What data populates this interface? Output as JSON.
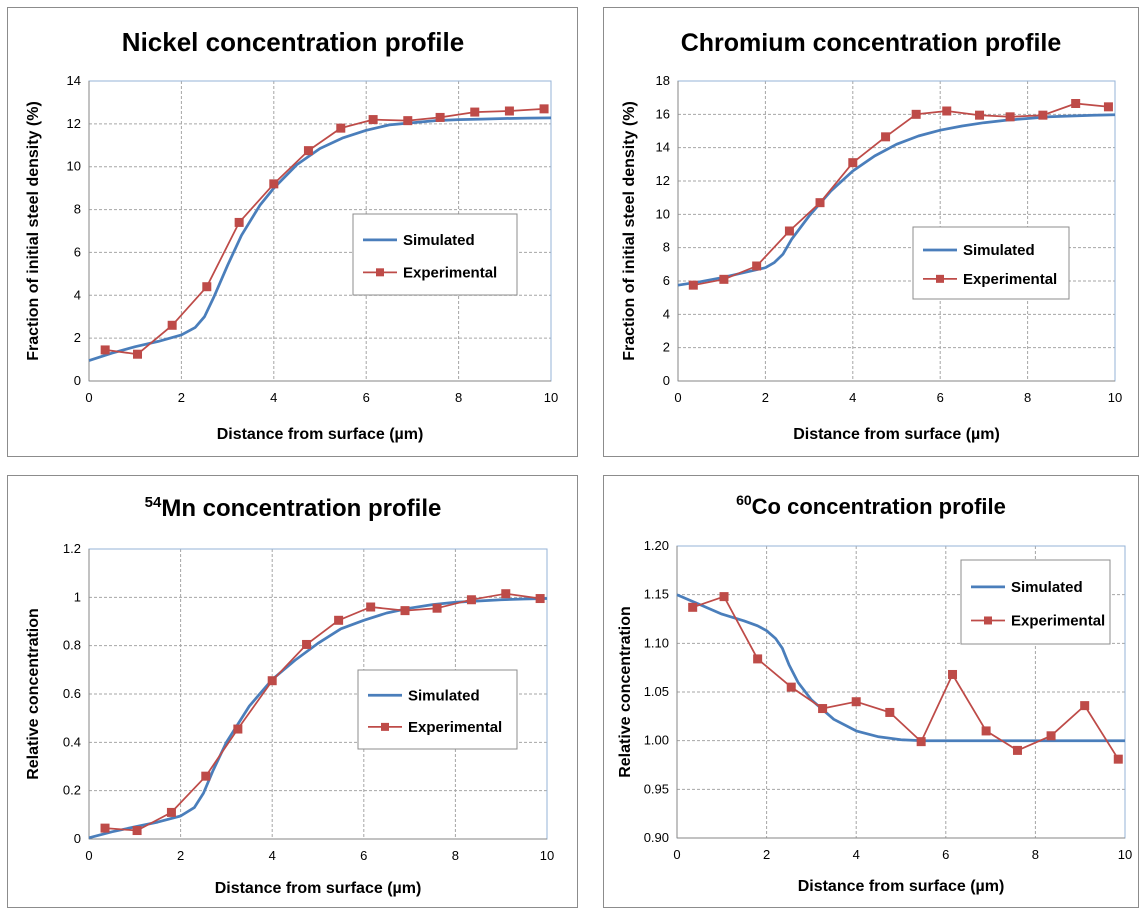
{
  "chart_data": [
    {
      "type": "line",
      "title": "Nickel concentration profile",
      "title_superscript": "",
      "xlabel": "Distance from surface (µm)",
      "ylabel": "Fraction of initial steel density (%)",
      "xlim": [
        0,
        10
      ],
      "ylim": [
        0,
        14
      ],
      "xticks": [
        "0",
        "2",
        "4",
        "6",
        "8",
        "10"
      ],
      "yticks": [
        "0",
        "2",
        "4",
        "6",
        "8",
        "10",
        "12",
        "14"
      ],
      "grid": true,
      "legend_position": "right-middle",
      "series": [
        {
          "name": "Simulated",
          "color": "#4a7ebb",
          "marker": "none",
          "x": [
            0,
            0.5,
            1,
            1.5,
            2,
            2.3,
            2.5,
            2.7,
            3,
            3.3,
            3.7,
            4,
            4.5,
            5,
            5.5,
            6,
            6.5,
            7,
            7.5,
            8,
            8.5,
            9,
            9.5,
            10
          ],
          "y": [
            0.95,
            1.3,
            1.6,
            1.85,
            2.15,
            2.5,
            3.0,
            3.9,
            5.4,
            6.8,
            8.2,
            9.0,
            10.1,
            10.85,
            11.35,
            11.7,
            11.95,
            12.05,
            12.15,
            12.2,
            12.22,
            12.25,
            12.27,
            12.28
          ]
        },
        {
          "name": "Experimental",
          "color": "#be4b48",
          "marker": "square",
          "x": [
            0.35,
            1.05,
            1.8,
            2.55,
            3.25,
            4.0,
            4.75,
            5.45,
            6.15,
            6.9,
            7.6,
            8.35,
            9.1,
            9.85
          ],
          "y": [
            1.45,
            1.25,
            2.6,
            4.4,
            7.4,
            9.2,
            10.75,
            11.8,
            12.2,
            12.15,
            12.3,
            12.55,
            12.6,
            12.7
          ]
        }
      ]
    },
    {
      "type": "line",
      "title": "Chromium concentration profile",
      "title_superscript": "",
      "xlabel": "Distance from surface (µm)",
      "ylabel": "Fraction of initial steel density (%)",
      "xlim": [
        0,
        10
      ],
      "ylim": [
        0,
        18
      ],
      "xticks": [
        "0",
        "2",
        "4",
        "6",
        "8",
        "10"
      ],
      "yticks": [
        "0",
        "2",
        "4",
        "6",
        "8",
        "10",
        "12",
        "14",
        "16",
        "18"
      ],
      "grid": true,
      "legend_position": "right-middle",
      "series": [
        {
          "name": "Simulated",
          "color": "#4a7ebb",
          "marker": "none",
          "x": [
            0,
            0.5,
            1,
            1.5,
            2,
            2.2,
            2.4,
            2.6,
            3,
            3.5,
            4,
            4.5,
            5,
            5.5,
            6,
            6.5,
            7,
            7.5,
            8,
            8.5,
            9,
            9.5,
            10
          ],
          "y": [
            5.75,
            5.95,
            6.2,
            6.5,
            6.8,
            7.1,
            7.6,
            8.5,
            9.9,
            11.4,
            12.6,
            13.5,
            14.2,
            14.7,
            15.05,
            15.3,
            15.5,
            15.65,
            15.75,
            15.85,
            15.9,
            15.95,
            15.98
          ]
        },
        {
          "name": "Experimental",
          "color": "#be4b48",
          "marker": "square",
          "x": [
            0.35,
            1.05,
            1.8,
            2.55,
            3.25,
            4.0,
            4.75,
            5.45,
            6.15,
            6.9,
            7.6,
            8.35,
            9.1,
            9.85
          ],
          "y": [
            5.75,
            6.1,
            6.9,
            9.0,
            10.7,
            13.1,
            14.65,
            16.0,
            16.2,
            15.95,
            15.85,
            15.95,
            16.65,
            16.45
          ]
        }
      ]
    },
    {
      "type": "line",
      "title": "Mn concentration profile",
      "title_superscript": "54",
      "xlabel": "Distance from surface (µm)",
      "ylabel": "Relative concentration",
      "xlim": [
        0,
        10
      ],
      "ylim": [
        0,
        1.2
      ],
      "xticks": [
        "0",
        "2",
        "4",
        "6",
        "8",
        "10"
      ],
      "yticks": [
        "0",
        "0.2",
        "0.4",
        "0.6",
        "0.8",
        "1",
        "1.2"
      ],
      "grid": true,
      "legend_position": "right-middle",
      "series": [
        {
          "name": "Simulated",
          "color": "#4a7ebb",
          "marker": "none",
          "x": [
            0,
            0.5,
            1,
            1.5,
            2,
            2.3,
            2.5,
            2.7,
            3,
            3.5,
            4,
            4.5,
            5,
            5.5,
            6,
            6.5,
            7,
            7.5,
            8,
            8.5,
            9,
            9.5,
            10
          ],
          "y": [
            0.005,
            0.03,
            0.05,
            0.07,
            0.095,
            0.13,
            0.19,
            0.28,
            0.4,
            0.55,
            0.66,
            0.74,
            0.81,
            0.87,
            0.905,
            0.935,
            0.955,
            0.97,
            0.98,
            0.985,
            0.99,
            0.993,
            0.995
          ]
        },
        {
          "name": "Experimental",
          "color": "#be4b48",
          "marker": "square",
          "x": [
            0.35,
            1.05,
            1.8,
            2.55,
            3.25,
            4.0,
            4.75,
            5.45,
            6.15,
            6.9,
            7.6,
            8.35,
            9.1,
            9.85
          ],
          "y": [
            0.045,
            0.035,
            0.11,
            0.26,
            0.455,
            0.655,
            0.805,
            0.905,
            0.96,
            0.945,
            0.955,
            0.99,
            1.015,
            0.995
          ]
        }
      ]
    },
    {
      "type": "line",
      "title": "Co concentration profile",
      "title_superscript": "60",
      "xlabel": "Distance from surface (µm)",
      "ylabel": "Relative concentration",
      "xlim": [
        0,
        10
      ],
      "ylim": [
        0.9,
        1.2
      ],
      "xticks": [
        "0",
        "2",
        "4",
        "6",
        "8",
        "10"
      ],
      "yticks": [
        "0.90",
        "0.95",
        "1.00",
        "1.05",
        "1.10",
        "1.15",
        "1.20"
      ],
      "grid": true,
      "legend_position": "top-right",
      "series": [
        {
          "name": "Simulated",
          "color": "#4a7ebb",
          "marker": "none",
          "x": [
            0,
            0.5,
            1,
            1.5,
            1.8,
            2.0,
            2.2,
            2.35,
            2.5,
            2.7,
            3,
            3.5,
            4,
            4.5,
            5,
            5.5,
            6,
            7,
            8,
            9,
            10
          ],
          "y": [
            1.15,
            1.14,
            1.13,
            1.123,
            1.118,
            1.113,
            1.105,
            1.095,
            1.078,
            1.06,
            1.042,
            1.022,
            1.01,
            1.004,
            1.001,
            1.0,
            1.0,
            1.0,
            1.0,
            1.0,
            1.0
          ]
        },
        {
          "name": "Experimental",
          "color": "#be4b48",
          "marker": "square",
          "x": [
            0.35,
            1.05,
            1.8,
            2.55,
            3.25,
            4.0,
            4.75,
            5.45,
            6.15,
            6.9,
            7.6,
            8.35,
            9.1,
            9.85
          ],
          "y": [
            1.137,
            1.148,
            1.084,
            1.055,
            1.033,
            1.04,
            1.029,
            0.999,
            1.068,
            1.01,
            0.99,
            1.005,
            1.036,
            0.981
          ]
        }
      ]
    }
  ]
}
